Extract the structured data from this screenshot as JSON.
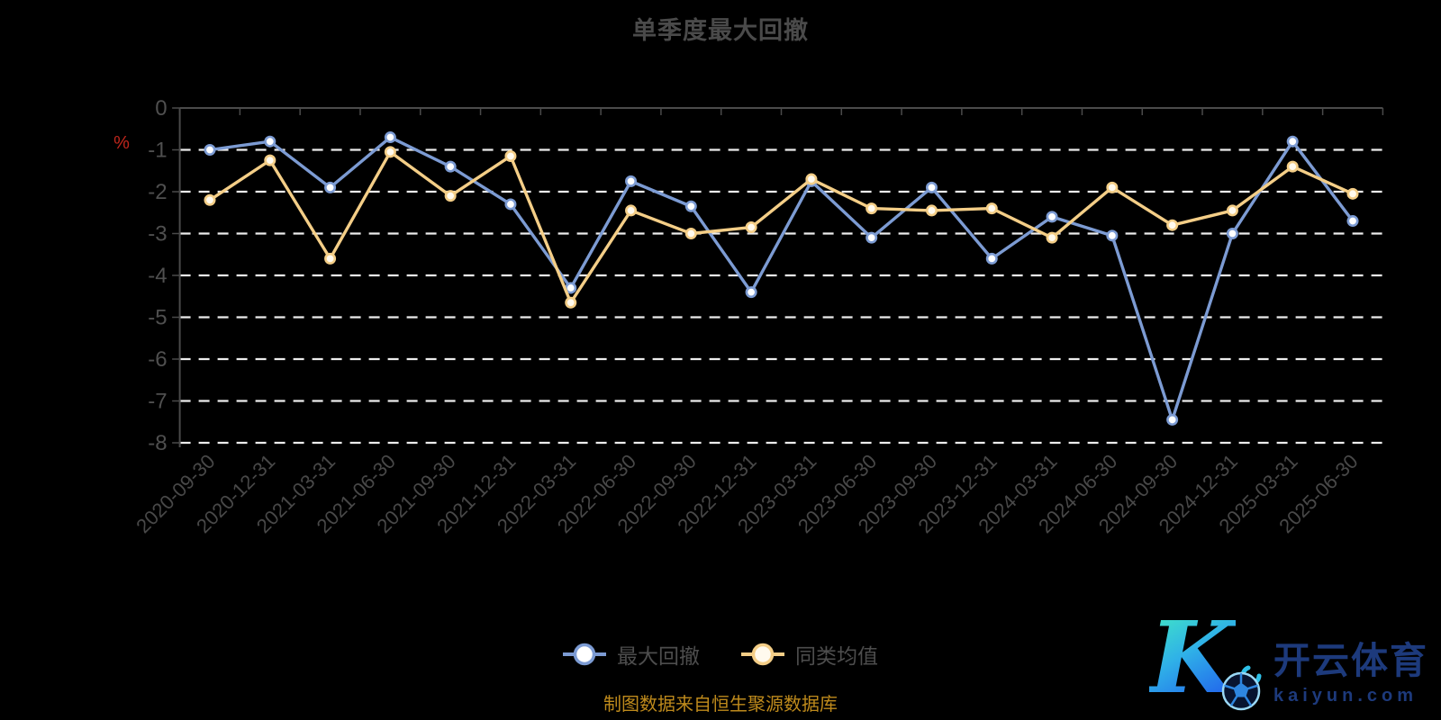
{
  "source_note": "制图数据来自恒生聚源数据库",
  "watermark": {
    "monogram": "K",
    "brand": "开云体育",
    "domain": "kaiyun.com"
  },
  "colors": {
    "background": "#000000",
    "gridline": "#ECECEC",
    "axis": "#4A4A4A",
    "title_text": "#4A4A4A",
    "axis_label": "#4F4F4F",
    "unit_label_red": "#C0261C",
    "source_text": "#BE8A1C",
    "series_blue": "#7C9BD3",
    "series_yellow": "#F4CE87",
    "logo_navy": "#1D3A7C"
  },
  "chart_data": {
    "type": "line",
    "title": "单季度最大回撤",
    "ylabel": "%",
    "ylim": [
      -8,
      0
    ],
    "y_ticks": [
      0,
      -1,
      -2,
      -3,
      -4,
      -5,
      -6,
      -7,
      -8
    ],
    "grid": "horizontal-dashed",
    "legend_position": "bottom",
    "x": [
      "2020-09-30",
      "2020-12-31",
      "2021-03-31",
      "2021-06-30",
      "2021-09-30",
      "2021-12-31",
      "2022-03-31",
      "2022-06-30",
      "2022-09-30",
      "2022-12-31",
      "2023-03-31",
      "2023-06-30",
      "2023-09-30",
      "2023-12-31",
      "2024-03-31",
      "2024-06-30",
      "2024-09-30",
      "2024-12-31",
      "2025-03-31",
      "2025-06-30"
    ],
    "series": [
      {
        "name": "最大回撤",
        "color": "#7C9BD3",
        "marker_fill": "#FFFFFF",
        "values": [
          -1.0,
          -0.8,
          -1.9,
          -0.7,
          -1.4,
          -2.3,
          -4.3,
          -1.75,
          -2.35,
          -4.4,
          -1.75,
          -3.1,
          -1.9,
          -3.6,
          -2.6,
          -3.05,
          -7.45,
          -3.0,
          -0.8,
          -2.7
        ]
      },
      {
        "name": "同类均值",
        "color": "#F4CE87",
        "marker_fill": "#FFFAEE",
        "values": [
          -2.2,
          -1.25,
          -3.6,
          -1.05,
          -2.1,
          -1.15,
          -4.65,
          -2.45,
          -3.0,
          -2.85,
          -1.7,
          -2.4,
          -2.45,
          -2.4,
          -3.1,
          -1.9,
          -2.8,
          -2.45,
          -1.4,
          -2.05
        ]
      }
    ]
  }
}
